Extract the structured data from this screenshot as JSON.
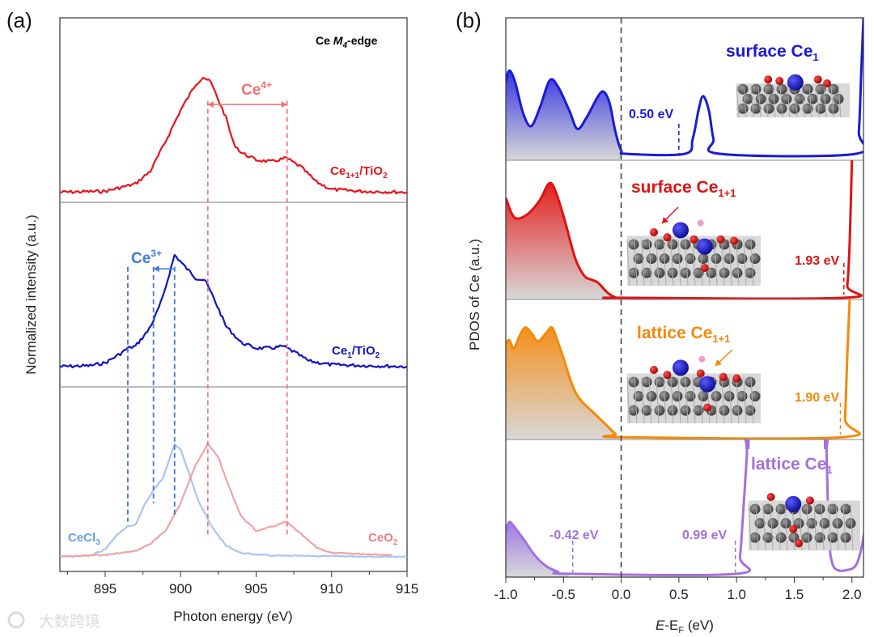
{
  "chart_data": [
    {
      "type": "line",
      "panel_label": "(a)",
      "title_parts": {
        "pre": "Ce ",
        "italic": "M",
        "sub": "4",
        "post": "-edge"
      },
      "xlabel": "Photon energy (eV)",
      "ylabel": "Normalized intensity (a.u.)",
      "xlim": [
        892,
        915
      ],
      "ylim": [
        0,
        3
      ],
      "xticks": [
        895,
        900,
        905,
        910,
        915
      ],
      "series": [
        {
          "name": "Ce1+1/TiO2",
          "label": {
            "a": "Ce",
            "sub": "1+1",
            "b": "/TiO",
            "sub2": "2"
          },
          "color": "#e8141b",
          "x": [
            892,
            895,
            897,
            898,
            899,
            900,
            901,
            901.5,
            902,
            903,
            903.5,
            904,
            905,
            906,
            907,
            908,
            909,
            910,
            912,
            915
          ],
          "y": [
            2.055,
            2.06,
            2.1,
            2.17,
            2.33,
            2.5,
            2.64,
            2.68,
            2.65,
            2.46,
            2.32,
            2.27,
            2.23,
            2.22,
            2.24,
            2.19,
            2.11,
            2.07,
            2.06,
            2.055
          ]
        },
        {
          "name": "Ce1/TiO2",
          "label": {
            "a": "Ce",
            "sub": "1",
            "b": "/TiO",
            "sub2": "2"
          },
          "color": "#1212c4",
          "x": [
            892,
            894,
            895,
            896,
            896.5,
            897,
            897.8,
            898.2,
            898.8,
            899.6,
            900.3,
            901,
            901.6,
            902.2,
            903,
            904,
            905,
            906,
            906.8,
            907.5,
            908.5,
            910,
            915
          ],
          "y": [
            1.11,
            1.115,
            1.13,
            1.18,
            1.21,
            1.22,
            1.3,
            1.36,
            1.48,
            1.715,
            1.65,
            1.59,
            1.58,
            1.48,
            1.33,
            1.24,
            1.21,
            1.21,
            1.22,
            1.19,
            1.14,
            1.12,
            1.11
          ]
        },
        {
          "name": "CeCl3",
          "label": {
            "a": "CeCl",
            "sub": "3",
            "b": "",
            "sub2": ""
          },
          "color": "#a9c5f2",
          "x": [
            892,
            894,
            895,
            895.8,
            896.5,
            897,
            897.6,
            898.2,
            898.8,
            899.3,
            899.6,
            900,
            900.6,
            901.2,
            902,
            903,
            904,
            906,
            915
          ],
          "y": [
            0.08,
            0.085,
            0.12,
            0.2,
            0.245,
            0.25,
            0.36,
            0.44,
            0.5,
            0.62,
            0.69,
            0.66,
            0.52,
            0.38,
            0.25,
            0.14,
            0.1,
            0.085,
            0.08
          ]
        },
        {
          "name": "CeO2",
          "label": {
            "a": "CeO",
            "sub": "2",
            "b": "",
            "sub2": ""
          },
          "color": "#f0a3a3",
          "x": [
            892,
            895,
            897,
            898,
            899,
            900,
            901,
            901.8,
            902.5,
            903,
            904,
            905,
            906,
            907,
            908,
            909,
            910,
            914
          ],
          "y": [
            0.08,
            0.09,
            0.11,
            0.15,
            0.22,
            0.37,
            0.58,
            0.69,
            0.62,
            0.5,
            0.3,
            0.22,
            0.24,
            0.27,
            0.2,
            0.13,
            0.1,
            0.09
          ]
        }
      ],
      "reference_lines": [
        {
          "x": 901.8,
          "y": [
            0.2,
            2.55
          ],
          "color": "#f07878"
        },
        {
          "x": 907.05,
          "y": [
            0.2,
            2.55
          ],
          "color": "#f07878"
        },
        {
          "x": 896.5,
          "y": [
            0.27,
            1.65
          ],
          "color": "#3f78d8"
        },
        {
          "x": 898.2,
          "y": [
            0.37,
            1.65
          ],
          "color": "#3f78d8"
        },
        {
          "x": 899.6,
          "y": [
            0.29,
            1.65
          ],
          "color": "#3f78d8"
        }
      ],
      "annotations": [
        {
          "id": "ce4",
          "text": "Ce",
          "sup": "4+",
          "color": "#f07070",
          "arrow_x": [
            901.8,
            907.05
          ],
          "arrow_y": 2.53
        },
        {
          "id": "ce3",
          "text": "Ce",
          "sup": "3+",
          "color": "#3f78d8",
          "arrow_x": [
            899.6,
            898.2
          ],
          "arrow_y": 1.64
        }
      ]
    },
    {
      "type": "area",
      "panel_label": "(b)",
      "xlabel_parts": {
        "italic": "E",
        "mid": "-E",
        "sub": "F",
        "post": " (eV)"
      },
      "ylabel": "PDOS of Ce (a.u.)",
      "xlim": [
        -1.0,
        2.1
      ],
      "xticks": [
        "-1.0",
        "-0.5",
        "0.0",
        "0.5",
        "1.0",
        "1.5",
        "2.0"
      ],
      "fermi_level": 0.0,
      "series": [
        {
          "name": "surface Ce1",
          "label": {
            "a": "surface Ce",
            "sub": "1"
          },
          "color": "#1a1ad8",
          "x": [
            -1.0,
            -0.97,
            -0.92,
            -0.85,
            -0.78,
            -0.7,
            -0.62,
            -0.55,
            -0.45,
            -0.38,
            -0.3,
            -0.2,
            -0.15,
            -0.1,
            -0.05,
            0,
            0.05,
            0.55,
            0.62,
            0.67,
            0.71,
            0.76,
            0.8,
            0.86,
            2.03,
            2.06,
            2.08,
            2.1
          ],
          "y": [
            0.55,
            0.63,
            0.55,
            0.33,
            0.24,
            0.38,
            0.56,
            0.52,
            0.35,
            0.22,
            0.3,
            0.45,
            0.48,
            0.4,
            0.2,
            0.07,
            0.045,
            0.045,
            0.15,
            0.35,
            0.45,
            0.35,
            0.15,
            0.045,
            0.045,
            0.2,
            0.6,
            1.0
          ],
          "gap_labels": [
            {
              "text": "0.50 eV",
              "x": 0.5
            }
          ]
        },
        {
          "name": "surface Ce1+1",
          "label": {
            "a": "surface Ce",
            "sub": "1+1"
          },
          "color": "#e01212",
          "x": [
            -1,
            -0.95,
            -0.9,
            -0.8,
            -0.7,
            -0.63,
            -0.58,
            -0.5,
            -0.4,
            -0.32,
            -0.25,
            -0.2,
            -0.12,
            -0.05,
            0,
            1.93,
            1.96,
            1.98,
            2.0
          ],
          "y": [
            0.73,
            0.62,
            0.58,
            0.62,
            0.72,
            0.83,
            0.8,
            0.6,
            0.3,
            0.17,
            0.14,
            0.12,
            0.05,
            0.015,
            0.012,
            0.012,
            0.1,
            0.4,
            1.0
          ],
          "gap_labels": [
            {
              "text": "1.93 eV",
              "x": 1.93
            }
          ]
        },
        {
          "name": "lattice Ce1+1",
          "label": {
            "a": "lattice Ce",
            "sub": "1+1"
          },
          "color": "#f5880a",
          "x": [
            -1,
            -0.97,
            -0.93,
            -0.88,
            -0.83,
            -0.77,
            -0.72,
            -0.65,
            -0.6,
            -0.55,
            -0.5,
            -0.42,
            -0.35,
            -0.25,
            -0.15,
            -0.05,
            0,
            1.92,
            1.94,
            1.96,
            1.98
          ],
          "y": [
            0.68,
            0.71,
            0.65,
            0.74,
            0.8,
            0.75,
            0.7,
            0.76,
            0.8,
            0.7,
            0.58,
            0.38,
            0.28,
            0.2,
            0.12,
            0.04,
            0.017,
            0.017,
            0.15,
            0.6,
            1.0
          ],
          "gap_labels": [
            {
              "text": "1.90 eV",
              "x": 1.9
            }
          ]
        },
        {
          "name": "lattice Ce1",
          "label": {
            "a": "lattice Ce",
            "sub": "1"
          },
          "color": "#a470dc",
          "x": [
            -1,
            -0.97,
            -0.93,
            -0.85,
            -0.75,
            -0.65,
            -0.55,
            -0.45,
            1.0,
            1.03,
            1.06,
            1.09,
            1.11,
            1.76,
            1.78,
            1.8,
            1.83,
            1.88,
            1.95,
            2.03,
            2.08,
            2.12
          ],
          "y": [
            0.34,
            0.4,
            0.37,
            0.28,
            0.16,
            0.08,
            0.04,
            0.024,
            0.024,
            0.15,
            0.5,
            0.9,
            1.2,
            1.2,
            0.9,
            0.3,
            0.1,
            0.05,
            0.05,
            0.08,
            0.2,
            0.4
          ],
          "gap_labels": [
            {
              "text": "-0.42 eV",
              "x": -0.42
            },
            {
              "text": "0.99 eV",
              "x": 0.99
            }
          ],
          "top_markers": [
            1.1,
            1.77
          ]
        }
      ]
    }
  ],
  "watermark": {
    "text": "大数跨境"
  }
}
